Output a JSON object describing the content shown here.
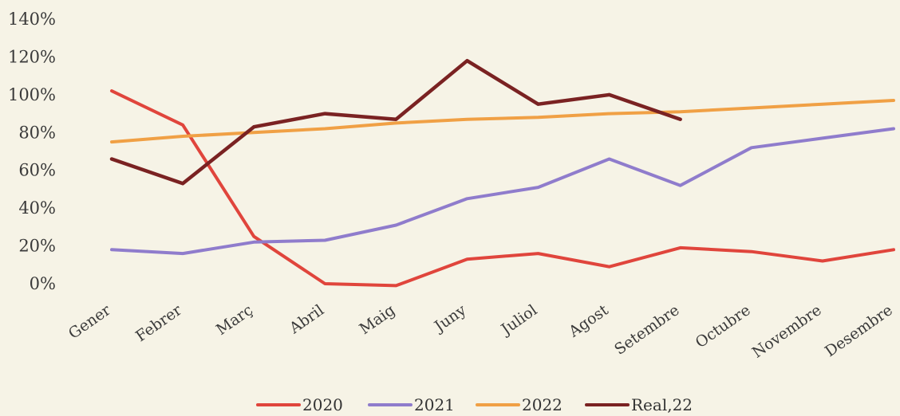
{
  "chart_data": {
    "type": "line",
    "title": "",
    "xlabel": "",
    "ylabel": "",
    "categories": [
      "Gener",
      "Febrer",
      "Març",
      "Abril",
      "Maig",
      "Juny",
      "Juliol",
      "Agost",
      "Setembre",
      "Octubre",
      "Novembre",
      "Desembre"
    ],
    "ylim": [
      0,
      140
    ],
    "y_ticks": [
      "0%",
      "20%",
      "40%",
      "60%",
      "80%",
      "100%",
      "120%",
      "140%"
    ],
    "grid": false,
    "legend_position": "bottom",
    "series": [
      {
        "name": "2020",
        "color": "#e0453c",
        "values": [
          102,
          84,
          25,
          0,
          -1,
          13,
          16,
          9,
          19,
          17,
          12,
          18
        ]
      },
      {
        "name": "2021",
        "color": "#8f7ccc",
        "values": [
          18,
          16,
          22,
          23,
          31,
          45,
          51,
          66,
          52,
          72,
          77,
          82
        ]
      },
      {
        "name": "2022",
        "color": "#f0a045",
        "values": [
          75,
          78,
          80,
          82,
          85,
          87,
          88,
          90,
          91,
          93,
          95,
          97
        ]
      },
      {
        "name": "Real,22",
        "color": "#7a2222",
        "values": [
          66,
          53,
          83,
          90,
          87,
          118,
          95,
          100,
          87,
          null,
          null,
          null
        ]
      }
    ]
  }
}
